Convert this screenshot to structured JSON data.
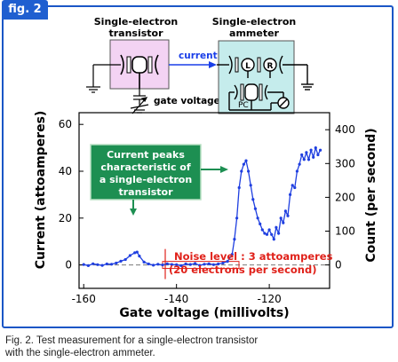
{
  "figure_label": "fig. 2",
  "caption": {
    "line1": "Fig. 2. Test measurement for a single-electron transistor",
    "line2": "with the single-electron ammeter."
  },
  "colors": {
    "frame": "#1a56c6",
    "transistor_box": "#f3d3f3",
    "ammeter_box": "#c5ecec",
    "callout_box": "#1d8f52",
    "data_line": "#1f3fe0",
    "noise_text": "#e0211a",
    "current_label": "#1a3ee8"
  },
  "diagram": {
    "transistor_title_1": "Single-electron",
    "transistor_title_2": "transistor",
    "ammeter_title_1": "Single-electron",
    "ammeter_title_2": "ammeter",
    "current_label": "current",
    "gate_voltage_label": "gate voltage",
    "L": "L",
    "R": "R",
    "PC": "PC"
  },
  "annotations": {
    "callout_1": "Current peaks",
    "callout_2": "characteristic of",
    "callout_3": "a single-electron",
    "callout_4": "transistor",
    "noise_1": "Noise level : 3 attoamperes",
    "noise_2": "(20 electrons per second)"
  },
  "chart_data": {
    "type": "line",
    "xlabel": "Gate voltage (millivolts)",
    "ylabel": "Current (attoamperes)",
    "y2label": "Count (per second)",
    "xlim": [
      -161,
      -107
    ],
    "ylim": [
      -10,
      65
    ],
    "y2lim": [
      -69.3,
      450.4
    ],
    "xticks": [
      -160,
      -140,
      -120
    ],
    "yticks": [
      0,
      20,
      40,
      60
    ],
    "y2ticks": [
      0,
      100,
      200,
      300,
      400
    ],
    "baseline_dashed_at": 0,
    "noise_band": [
      -1.5,
      1.5
    ],
    "series": [
      {
        "x": [
          -160,
          -159,
          -158,
          -157,
          -156,
          -155,
          -154,
          -153,
          -152,
          -151,
          -150,
          -149,
          -148.5,
          -148,
          -147,
          -146,
          -145,
          -144,
          -143,
          -142,
          -141,
          -140,
          -139,
          -138,
          -137,
          -136,
          -135,
          -134,
          -133,
          -132,
          -131,
          -130,
          -129,
          -128,
          -127.5,
          -127,
          -126.5,
          -126,
          -125.5,
          -125,
          -124.5,
          -124,
          -123.5,
          -123,
          -122.5,
          -122,
          -121.5,
          -121,
          -120.5,
          -120,
          -119.5,
          -119,
          -118.5,
          -118,
          -117.5,
          -117,
          -116.5,
          -116,
          -115.5,
          -115,
          -114.5,
          -114,
          -113.5,
          -113,
          -112.5,
          -112,
          -111.5,
          -111,
          -110.5,
          -110,
          -109.5,
          -109
        ],
        "y": [
          0.2,
          -0.3,
          0.5,
          0.1,
          -0.2,
          0.4,
          0.3,
          0.8,
          1.6,
          2.3,
          4.0,
          5.2,
          5.5,
          3.8,
          1.2,
          0.4,
          -0.1,
          0.3,
          0.0,
          0.5,
          0.2,
          0.1,
          -0.3,
          0.4,
          0.2,
          0.6,
          -0.2,
          0.3,
          0.5,
          0.1,
          0.4,
          0.8,
          1.5,
          4.5,
          11.0,
          20.0,
          33.0,
          40.0,
          43.0,
          44.5,
          40.0,
          34.0,
          28.0,
          24.0,
          20.0,
          17.5,
          15.0,
          13.5,
          13.0,
          15.0,
          13.0,
          11.0,
          16.0,
          13.5,
          20.0,
          18.0,
          23.0,
          21.0,
          30.0,
          34.0,
          33.0,
          40.0,
          43.0,
          47.0,
          45.0,
          48.0,
          45.0,
          49.0,
          46.0,
          50.0,
          47.0,
          49.0
        ]
      }
    ]
  }
}
